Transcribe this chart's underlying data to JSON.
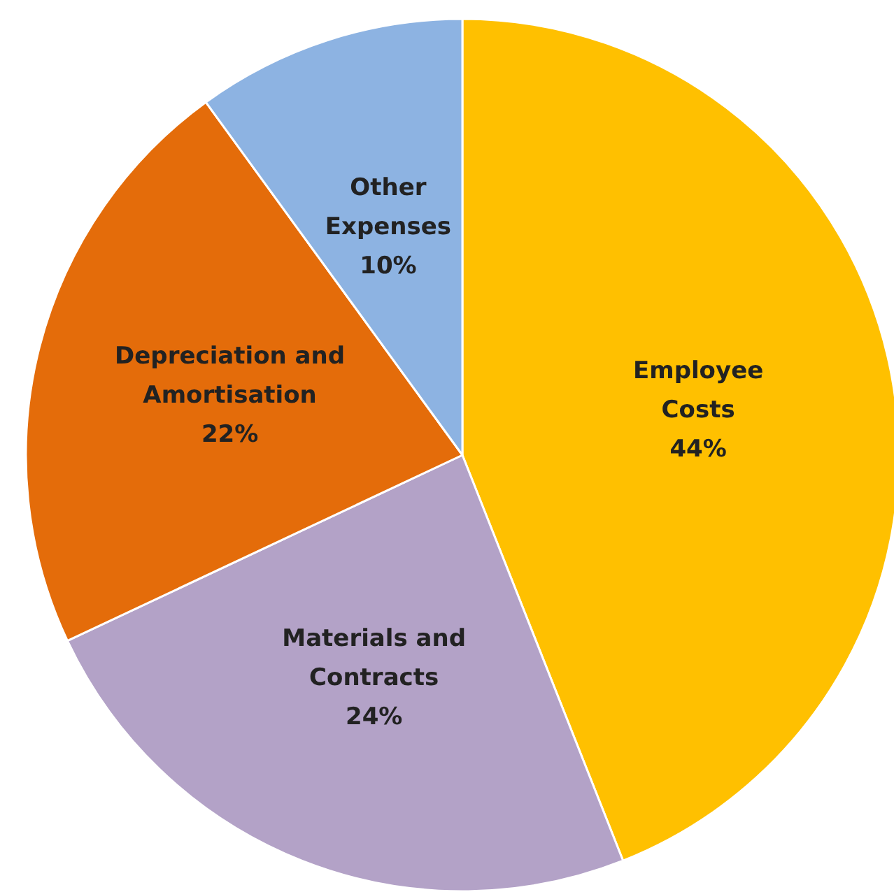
{
  "chart_data": {
    "type": "pie",
    "categories": [
      "Employee Costs",
      "Materials and Contracts",
      "Depreciation and Amortisation",
      "Other Expenses"
    ],
    "values": [
      44,
      24,
      22,
      10
    ],
    "colors": [
      "#ffc000",
      "#b3a2c7",
      "#e46c0a",
      "#8db3e2"
    ],
    "value_labels": [
      "44%",
      "24%",
      "22%",
      "10%"
    ]
  }
}
